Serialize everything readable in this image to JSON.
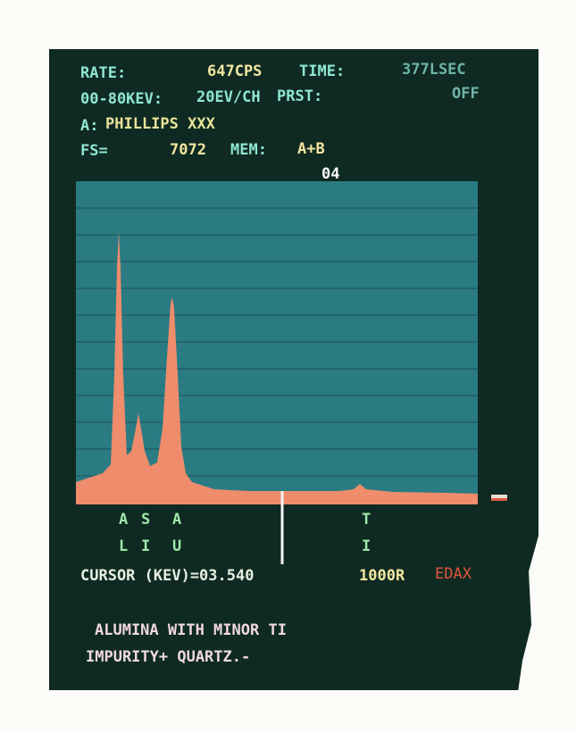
{
  "header": {
    "rows": [
      [
        "RATE:",
        "647CPS",
        "TIME:",
        "377LSEC"
      ],
      [
        "00-80KEV:",
        "20EV/CH",
        "PRST:",
        "OFF"
      ],
      [
        "A:",
        "PHILLIPS XXX"
      ],
      [
        "FS=",
        "7072",
        "MEM:",
        "A+B"
      ]
    ],
    "marker": "04"
  },
  "elements": [
    {
      "top": "A",
      "bottom": "L"
    },
    {
      "top": "S",
      "bottom": "I"
    },
    {
      "top": "A",
      "bottom": "U"
    },
    {
      "top": "T",
      "bottom": "I"
    }
  ],
  "status": {
    "cursor": "CURSOR (KEV)=03.540",
    "range": "1000R",
    "brand": "EDAX"
  },
  "notes": [
    "ALUMINA WITH MINOR TI",
    "IMPURITY+ QUARTZ.-"
  ]
}
